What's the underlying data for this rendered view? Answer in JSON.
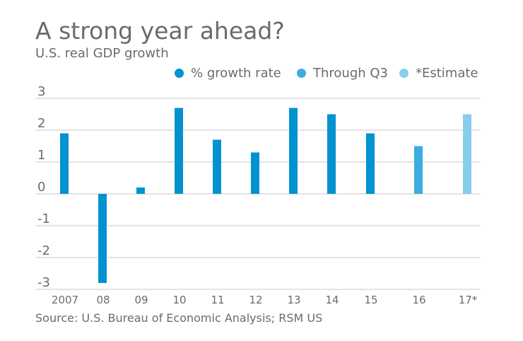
{
  "chart_data": {
    "type": "bar",
    "title": "A strong year ahead?",
    "subtitle": "U.S. real GDP growth",
    "source": "Source: U.S. Bureau of Economic Analysis; RSM US",
    "categories": [
      "2007",
      "08",
      "09",
      "10",
      "11",
      "12",
      "13",
      "14",
      "15",
      "16",
      "17*"
    ],
    "values": [
      1.9,
      -2.8,
      0.2,
      2.7,
      1.7,
      1.3,
      2.7,
      2.5,
      1.9,
      1.5,
      2.5
    ],
    "series_index": [
      0,
      0,
      0,
      0,
      0,
      0,
      0,
      0,
      0,
      1,
      2
    ],
    "legend": [
      {
        "name": "% growth rate",
        "color": "#0093d0"
      },
      {
        "name": "Through Q3",
        "color": "#3aaee0"
      },
      {
        "name": "*Estimate",
        "color": "#87cdec"
      }
    ],
    "legend_position": "top-right",
    "yticks": [
      "3",
      "2",
      "1",
      "0",
      "-1",
      "-2",
      "-3"
    ],
    "ylim": [
      -3,
      3
    ],
    "grid": true,
    "xlabel": "",
    "ylabel": ""
  }
}
